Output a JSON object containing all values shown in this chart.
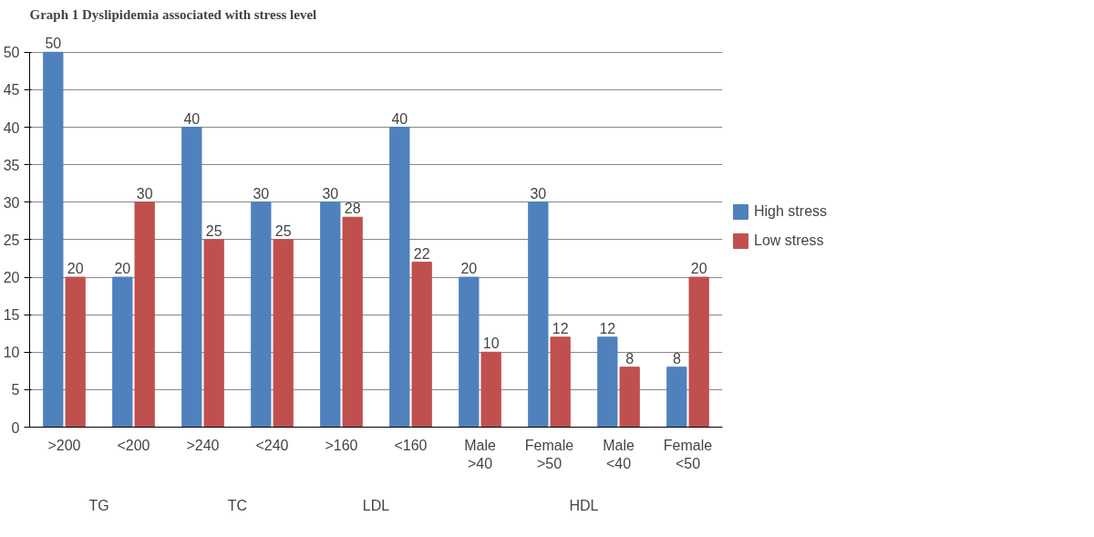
{
  "chart_data": {
    "type": "bar",
    "title": "Graph 1 Dyslipidemia associated with stress level",
    "categories": [
      ">200",
      "<200",
      ">240",
      "<240",
      ">160",
      "<160",
      "Male\n>40",
      "Female\n>50",
      "Male\n<40",
      "Female\n<50"
    ],
    "series": [
      {
        "name": "High stress",
        "color": "#4f81bd",
        "values": [
          50,
          20,
          40,
          30,
          30,
          40,
          20,
          30,
          12,
          8
        ]
      },
      {
        "name": "Low stress",
        "color": "#c0504d",
        "values": [
          20,
          30,
          25,
          25,
          28,
          22,
          10,
          12,
          8,
          20
        ]
      }
    ],
    "annotations": [
      "TG",
      "TC",
      "LDL",
      "HDL"
    ],
    "ylim": [
      0,
      50
    ],
    "yticks": [
      0,
      5,
      10,
      15,
      20,
      25,
      30,
      35,
      40,
      45,
      50
    ],
    "grid": "y",
    "legend": "right",
    "data_labels": true
  }
}
